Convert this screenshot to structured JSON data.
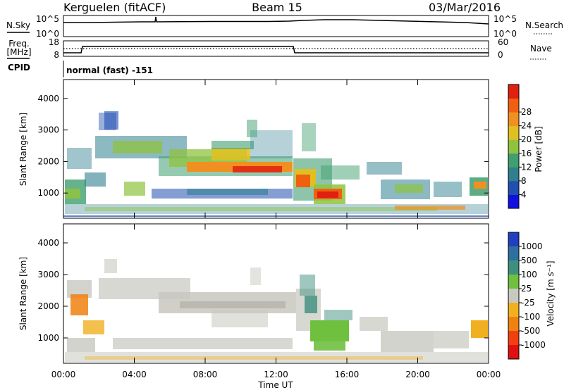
{
  "header": {
    "station": "Kerguelen (fitACF)",
    "beam": "Beam 15",
    "date": "03/Mar/2016"
  },
  "status_panels": {
    "nsky": {
      "label": "N.Sky",
      "tick_top": "10^5",
      "tick_bottom": "10^0"
    },
    "nsearch": {
      "label": "N.Search",
      "tick_top": "10^5",
      "tick_bottom": "10^0"
    },
    "freq": {
      "label_line1": "Freq.",
      "label_line2": "[MHz]",
      "tick_top": "18",
      "tick_bottom": "8"
    },
    "nave": {
      "label": "Nave",
      "tick_top": "60",
      "tick_bottom": "0"
    },
    "cpid": {
      "label": "CPID",
      "text": "normal (fast) -151"
    }
  },
  "chart_data": [
    {
      "type": "heatmap",
      "name": "power",
      "title": "",
      "xlabel": "",
      "ylabel": "Slant Range [km]",
      "x_ticks": [
        "00:00",
        "04:00",
        "08:00",
        "12:00",
        "16:00",
        "20:00",
        "00:00"
      ],
      "y_ticks": [
        1000,
        2000,
        3000,
        4000
      ],
      "xlim_hours": [
        0,
        24
      ],
      "ylim_km": [
        200,
        4600
      ],
      "colorbar": {
        "label": "Power [dB]",
        "ticks": [
          "4",
          "8",
          "12",
          "16",
          "20",
          "24",
          "28"
        ],
        "colors": [
          "#1010e0",
          "#1f4fb0",
          "#2f7f8f",
          "#3f9f6f",
          "#8fc33f",
          "#e0c020",
          "#f09020",
          "#f06010",
          "#e02010"
        ]
      }
    },
    {
      "type": "heatmap",
      "name": "velocity",
      "title": "",
      "xlabel": "Time UT",
      "ylabel": "Slant Range [km]",
      "x_ticks": [
        "00:00",
        "04:00",
        "08:00",
        "12:00",
        "16:00",
        "20:00",
        "00:00"
      ],
      "y_ticks": [
        1000,
        2000,
        3000,
        4000
      ],
      "xlim_hours": [
        0,
        24
      ],
      "ylim_km": [
        200,
        4600
      ],
      "colorbar": {
        "label": "Velocity [m s⁻¹]",
        "ticks": [
          "1000",
          "500",
          "100",
          "25",
          "-25",
          "-100",
          "-500",
          "-1000"
        ],
        "colors": [
          "#2040c0",
          "#2f6fa0",
          "#3f8f7f",
          "#70c040",
          "#c8c8c0",
          "#f0b020",
          "#f08010",
          "#f04010",
          "#e01010"
        ]
      }
    }
  ]
}
